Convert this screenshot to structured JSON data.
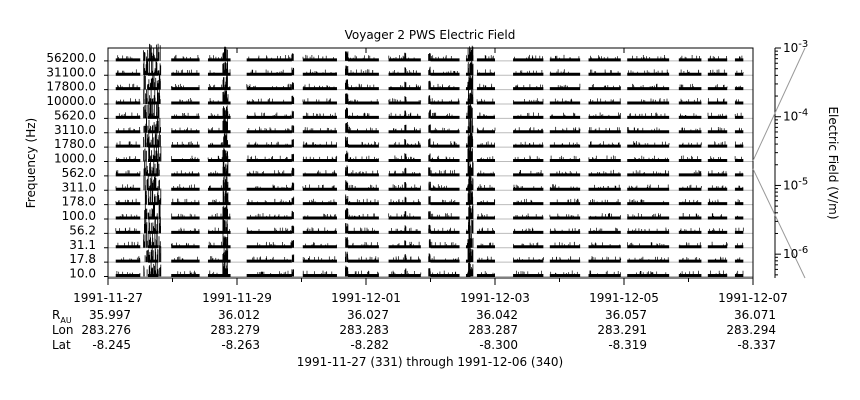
{
  "chart_data": {
    "type": "line",
    "title": "Voyager 2 PWS Electric Field",
    "ylabel": "Frequency (Hz)",
    "right_axis_label": "Electric Field (V/m)",
    "right_axis_scale": "log",
    "right_axis_range": [
      4.5e-07,
      0.001
    ],
    "right_axis_ticks": [
      {
        "base": "10",
        "exp": "-3",
        "value": 0.001
      },
      {
        "base": "10",
        "exp": "-4",
        "value": 0.0001
      },
      {
        "base": "10",
        "exp": "-5",
        "value": 1e-05
      },
      {
        "base": "10",
        "exp": "-6",
        "value": 1e-06
      }
    ],
    "channels": [
      "56200.0",
      "31100.0",
      "17800.0",
      "10000.0",
      "5620.0",
      "3110.0",
      "1780.0",
      "1000.0",
      "562.0",
      "311.0",
      "178.0",
      "100.0",
      "56.2",
      "31.1",
      "17.8",
      "10.0"
    ],
    "x_range": [
      "1991-11-27",
      "1991-12-07"
    ],
    "x_tick_labels": [
      "1991-11-27",
      "1991-11-29",
      "1991-12-01",
      "1991-12-03",
      "1991-12-05",
      "1991-12-07"
    ],
    "x_minor_ticks_days": [
      1,
      3,
      5,
      7,
      9
    ],
    "aux_rows": [
      {
        "label": "R",
        "subscript": "AU",
        "values": [
          "35.997",
          "36.012",
          "36.027",
          "36.042",
          "36.057",
          "36.071"
        ]
      },
      {
        "label": "Lon",
        "subscript": "",
        "values": [
          "283.276",
          "283.279",
          "283.283",
          "283.287",
          "283.291",
          "283.294"
        ]
      },
      {
        "label": "Lat",
        "subscript": "",
        "values": [
          "-8.245",
          "-8.263",
          "-8.282",
          "-8.300",
          "-8.319",
          "-8.337"
        ]
      }
    ],
    "footer": "1991-11-27 (331) through 1991-12-06 (340)",
    "data_coverage_days": [
      [
        0.12,
        0.5
      ],
      [
        0.62,
        0.78
      ],
      [
        0.98,
        1.42
      ],
      [
        1.55,
        1.9
      ],
      [
        2.15,
        2.85
      ],
      [
        3.02,
        3.55
      ],
      [
        3.72,
        4.2
      ],
      [
        4.35,
        4.85
      ],
      [
        5.0,
        5.45
      ],
      [
        5.55,
        5.62
      ],
      [
        5.72,
        6.0
      ],
      [
        6.28,
        6.75
      ],
      [
        6.85,
        7.32
      ],
      [
        7.45,
        7.95
      ],
      [
        8.05,
        8.7
      ],
      [
        8.85,
        9.2
      ],
      [
        9.3,
        9.6
      ],
      [
        9.72,
        9.85
      ]
    ],
    "burst_days": [
      {
        "x": 0.55,
        "x2": 0.82,
        "strength": 1.0
      },
      {
        "x": 1.78,
        "x2": 1.86,
        "strength": 0.8
      },
      {
        "x": 2.85,
        "x2": 2.88,
        "strength": 0.3
      },
      {
        "x": 3.68,
        "x2": 3.72,
        "strength": 0.5
      },
      {
        "x": 4.6,
        "x2": 4.62,
        "strength": 0.3
      },
      {
        "x": 4.97,
        "x2": 5.0,
        "strength": 0.35
      },
      {
        "x": 5.58,
        "x2": 5.66,
        "strength": 0.85
      }
    ],
    "grid": true
  }
}
